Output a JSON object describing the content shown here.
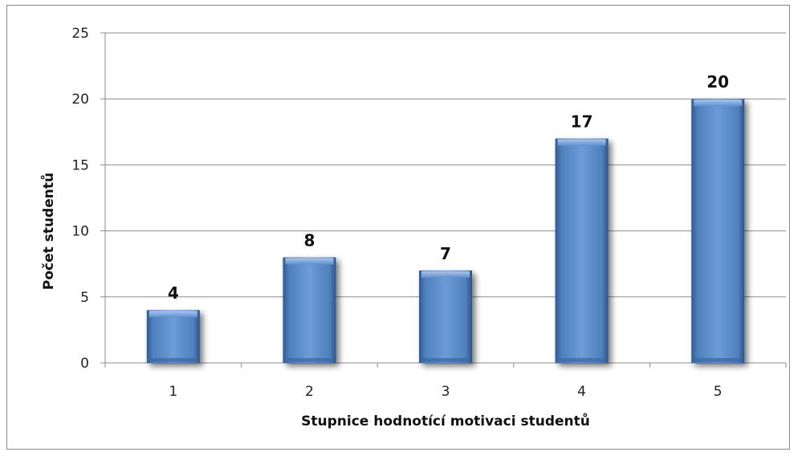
{
  "chart_data": {
    "type": "bar",
    "title": "",
    "xlabel": "Stupnice hodnotící motivaci studentů",
    "ylabel": "Počet  studentů",
    "categories": [
      "1",
      "2",
      "3",
      "4",
      "5"
    ],
    "values": [
      4,
      8,
      7,
      17,
      20
    ],
    "ylim": [
      0,
      25
    ],
    "y_ticks": [
      0,
      5,
      10,
      15,
      20,
      25
    ],
    "grid": true,
    "legend": "none",
    "bar_color": "#4f81bd"
  }
}
